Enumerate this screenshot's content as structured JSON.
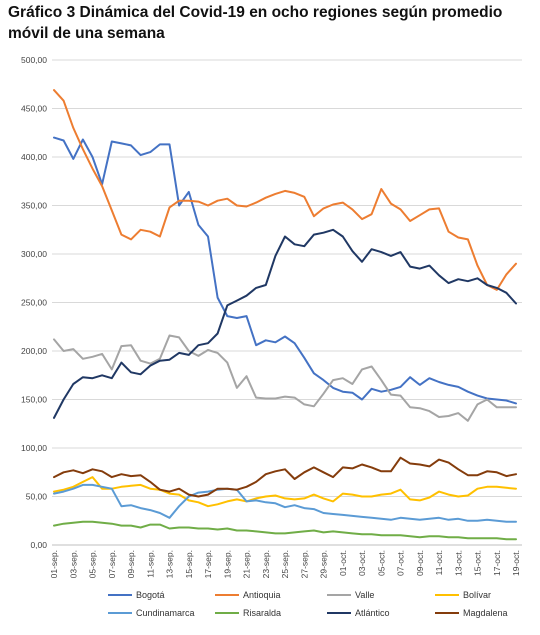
{
  "title": "Gráfico 3 Dinámica del Covid-19 en ocho regiones según promedio móvil de una semana",
  "chart_data": {
    "type": "line",
    "ylim": [
      0,
      500
    ],
    "yticks": [
      0,
      50,
      100,
      150,
      200,
      250,
      300,
      350,
      400,
      450,
      500
    ],
    "ytick_labels": [
      "0,00",
      "50,00",
      "100,00",
      "150,00",
      "200,00",
      "250,00",
      "300,00",
      "350,00",
      "400,00",
      "450,00",
      "500,00"
    ],
    "grid": true,
    "legend_position": "bottom",
    "x": [
      "01-sep.",
      "02-sep.",
      "03-sep.",
      "04-sep.",
      "05-sep.",
      "06-sep.",
      "07-sep.",
      "08-sep.",
      "09-sep.",
      "10-sep.",
      "11-sep.",
      "12-sep.",
      "13-sep.",
      "14-sep.",
      "15-sep.",
      "16-sep.",
      "17-sep.",
      "18-sep.",
      "19-sep.",
      "20-sep.",
      "21-sep.",
      "22-sep.",
      "23-sep.",
      "24-sep.",
      "25-sep.",
      "26-sep.",
      "27-sep.",
      "28-sep.",
      "29-sep.",
      "30-sep.",
      "01-oct.",
      "02-oct.",
      "03-oct.",
      "04-oct.",
      "05-oct.",
      "06-oct.",
      "07-oct.",
      "08-oct.",
      "09-oct.",
      "10-oct.",
      "11-oct.",
      "12-oct.",
      "13-oct.",
      "14-oct.",
      "15-oct.",
      "16-oct.",
      "17-oct.",
      "18-oct.",
      "19-oct."
    ],
    "xtick_labels": [
      "01-sep.",
      "03-sep.",
      "05-sep.",
      "07-sep.",
      "09-sep.",
      "11-sep.",
      "13-sep.",
      "15-sep.",
      "17-sep.",
      "19-sep.",
      "21-sep.",
      "23-sep.",
      "25-sep.",
      "27-sep.",
      "29-sep.",
      "01-oct.",
      "03-oct.",
      "05-oct.",
      "07-oct.",
      "09-oct.",
      "11-oct.",
      "13-oct.",
      "15-oct.",
      "17-oct.",
      "19-oct."
    ],
    "series": [
      {
        "name": "Bogotá",
        "color": "#4472c4",
        "values": [
          420,
          417,
          398,
          418,
          400,
          372,
          416,
          414,
          412,
          402,
          405,
          413,
          413,
          350,
          364,
          330,
          318,
          255,
          236,
          234,
          236,
          206,
          211,
          209,
          215,
          208,
          193,
          177,
          170,
          162,
          158,
          157,
          150,
          161,
          158,
          160,
          163,
          173,
          165,
          172,
          168,
          165,
          163,
          158,
          154,
          151,
          150,
          149,
          146
        ]
      },
      {
        "name": "Antioquia",
        "color": "#ed7d31",
        "values": [
          469,
          458,
          430,
          408,
          388,
          370,
          345,
          320,
          315,
          325,
          323,
          318,
          348,
          355,
          355,
          354,
          350,
          355,
          357,
          350,
          349,
          353,
          358,
          362,
          365,
          363,
          359,
          339,
          347,
          351,
          353,
          346,
          336,
          341,
          367,
          352,
          346,
          334,
          340,
          346,
          347,
          323,
          317,
          315,
          288,
          268,
          263,
          279,
          290
        ]
      },
      {
        "name": "Valle",
        "color": "#a5a5a5",
        "values": [
          212,
          200,
          202,
          192,
          194,
          197,
          181,
          205,
          206,
          190,
          187,
          192,
          216,
          214,
          200,
          195,
          201,
          198,
          188,
          162,
          174,
          152,
          151,
          151,
          153,
          152,
          145,
          143,
          156,
          170,
          172,
          166,
          181,
          184,
          170,
          155,
          154,
          142,
          141,
          138,
          132,
          133,
          136,
          128,
          145,
          150,
          142,
          142,
          142
        ]
      },
      {
        "name": "Bolívar",
        "color": "#ffc000",
        "values": [
          55,
          57,
          60,
          65,
          70,
          58,
          58,
          60,
          61,
          62,
          58,
          57,
          53,
          52,
          46,
          44,
          40,
          42,
          45,
          47,
          45,
          48,
          50,
          51,
          48,
          47,
          48,
          52,
          48,
          45,
          53,
          52,
          50,
          50,
          52,
          53,
          57,
          47,
          46,
          49,
          55,
          52,
          50,
          51,
          58,
          60,
          60,
          59,
          58
        ]
      },
      {
        "name": "Cundinamarca",
        "color": "#5b9bd5",
        "values": [
          53,
          55,
          58,
          62,
          62,
          60,
          58,
          40,
          41,
          38,
          36,
          33,
          28,
          40,
          50,
          54,
          55,
          57,
          58,
          57,
          45,
          46,
          44,
          43,
          39,
          41,
          38,
          37,
          33,
          32,
          31,
          30,
          29,
          28,
          27,
          26,
          28,
          27,
          26,
          27,
          28,
          26,
          27,
          25,
          25,
          26,
          25,
          24,
          24
        ]
      },
      {
        "name": "Risaralda",
        "color": "#70ad47",
        "values": [
          20,
          22,
          23,
          24,
          24,
          23,
          22,
          20,
          20,
          18,
          21,
          21,
          17,
          18,
          18,
          17,
          17,
          16,
          17,
          15,
          15,
          14,
          13,
          12,
          12,
          13,
          14,
          15,
          13,
          14,
          13,
          12,
          11,
          11,
          10,
          10,
          10,
          9,
          8,
          9,
          9,
          8,
          8,
          7,
          7,
          7,
          7,
          6,
          6
        ]
      },
      {
        "name": "Atlántico",
        "color": "#203864",
        "values": [
          131,
          150,
          166,
          173,
          172,
          175,
          172,
          188,
          178,
          176,
          185,
          190,
          191,
          198,
          196,
          206,
          208,
          218,
          247,
          252,
          257,
          265,
          268,
          298,
          318,
          310,
          308,
          320,
          322,
          325,
          318,
          303,
          292,
          305,
          302,
          298,
          302,
          287,
          285,
          288,
          278,
          270,
          274,
          272,
          275,
          268,
          265,
          260,
          249
        ]
      },
      {
        "name": "Magdalena",
        "color": "#843c0c",
        "values": [
          70,
          75,
          77,
          74,
          78,
          76,
          70,
          73,
          71,
          72,
          65,
          57,
          55,
          58,
          52,
          50,
          52,
          58,
          58,
          57,
          60,
          65,
          73,
          76,
          78,
          68,
          75,
          80,
          75,
          70,
          80,
          79,
          83,
          80,
          76,
          76,
          90,
          84,
          83,
          81,
          88,
          85,
          78,
          72,
          72,
          76,
          75,
          71,
          73
        ]
      }
    ]
  }
}
